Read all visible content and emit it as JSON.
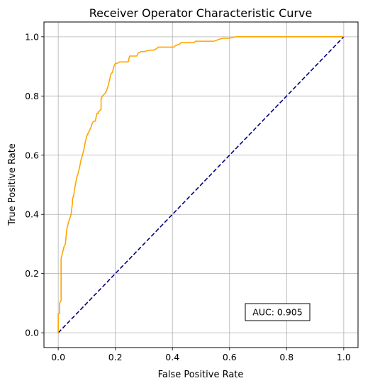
{
  "chart_data": {
    "type": "line",
    "title": "Receiver Operator Characteristic Curve",
    "xlabel": "False Positive Rate",
    "ylabel": "True Positive Rate",
    "xlim": [
      -0.05,
      1.05
    ],
    "ylim": [
      -0.05,
      1.05
    ],
    "xticks": [
      "0.0",
      "0.2",
      "0.4",
      "0.6",
      "0.8",
      "1.0"
    ],
    "yticks": [
      "0.0",
      "0.2",
      "0.4",
      "0.6",
      "0.8",
      "1.0"
    ],
    "grid": true,
    "annotation": "AUC: 0.905",
    "colors": {
      "roc": "#ffa500",
      "baseline": "#000080"
    },
    "series": [
      {
        "style": "solid",
        "x": [
          0.0,
          0.0,
          0.005,
          0.005,
          0.01,
          0.01,
          0.015,
          0.02,
          0.025,
          0.03,
          0.035,
          0.04,
          0.045,
          0.05,
          0.05,
          0.055,
          0.06,
          0.065,
          0.07,
          0.075,
          0.08,
          0.085,
          0.09,
          0.095,
          0.1,
          0.105,
          0.11,
          0.115,
          0.12,
          0.125,
          0.13,
          0.135,
          0.14,
          0.14,
          0.145,
          0.15,
          0.15,
          0.155,
          0.155,
          0.165,
          0.17,
          0.175,
          0.18,
          0.185,
          0.19,
          0.195,
          0.2,
          0.205,
          0.215,
          0.225,
          0.235,
          0.245,
          0.25,
          0.265,
          0.275,
          0.28,
          0.29,
          0.3,
          0.32,
          0.335,
          0.345,
          0.35,
          0.37,
          0.39,
          0.405,
          0.41,
          0.425,
          0.43,
          0.445,
          0.465,
          0.475,
          0.48,
          0.5,
          0.52,
          0.545,
          0.56,
          0.575,
          0.6,
          0.62,
          0.64,
          0.66,
          0.7,
          0.8,
          0.9,
          1.0
        ],
        "y": [
          0.0,
          0.065,
          0.065,
          0.1,
          0.11,
          0.25,
          0.27,
          0.29,
          0.3,
          0.35,
          0.37,
          0.385,
          0.4,
          0.44,
          0.45,
          0.47,
          0.5,
          0.525,
          0.54,
          0.56,
          0.585,
          0.6,
          0.62,
          0.645,
          0.665,
          0.675,
          0.685,
          0.695,
          0.71,
          0.715,
          0.715,
          0.74,
          0.74,
          0.745,
          0.75,
          0.755,
          0.79,
          0.8,
          0.8,
          0.81,
          0.82,
          0.835,
          0.855,
          0.875,
          0.88,
          0.9,
          0.91,
          0.91,
          0.915,
          0.915,
          0.915,
          0.915,
          0.935,
          0.935,
          0.935,
          0.945,
          0.95,
          0.95,
          0.955,
          0.955,
          0.96,
          0.965,
          0.965,
          0.965,
          0.965,
          0.97,
          0.975,
          0.98,
          0.98,
          0.98,
          0.98,
          0.985,
          0.985,
          0.985,
          0.985,
          0.99,
          0.995,
          0.995,
          1.0,
          1.0,
          1.0,
          1.0,
          1.0,
          1.0,
          1.0
        ]
      },
      {
        "style": "dashed",
        "x": [
          0.0,
          1.0
        ],
        "y": [
          0.0,
          1.0
        ]
      }
    ]
  }
}
